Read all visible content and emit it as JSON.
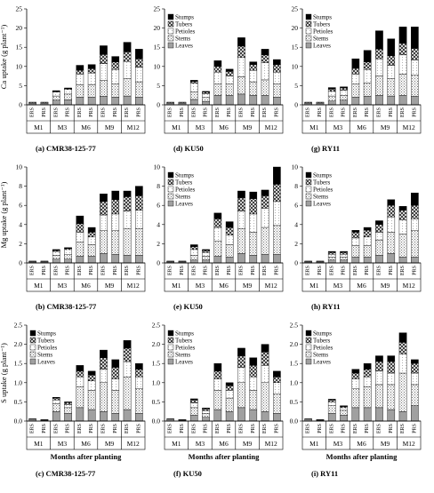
{
  "components": [
    "Leaves",
    "Stems",
    "Petioles",
    "Tubers",
    "Stumps"
  ],
  "legend_order": [
    "Stumps",
    "Tubers",
    "Petioles",
    "Stems",
    "Leaves"
  ],
  "x_title": "Months after planting",
  "chart_data": [
    {
      "type": "bar",
      "stacked": true,
      "panel": "a",
      "caption": "(a) CMR38-125-77",
      "ylabel": "Ca uptake (g plant⁻¹)",
      "ylim": [
        0,
        25
      ],
      "yticks": [
        0,
        5,
        10,
        15,
        20,
        25
      ],
      "months": [
        "M1",
        "M3",
        "M6",
        "M9",
        "M12"
      ],
      "bar_labels": [
        "ERS",
        "PRS",
        "ERS",
        "PRS",
        "ERS",
        "PRS",
        "ERS",
        "PRS",
        "ERS",
        "PRS"
      ],
      "legend": false,
      "series": [
        {
          "name": "Leaves",
          "values": [
            0.4,
            0.4,
            1.2,
            1.3,
            2.0,
            2.0,
            2.2,
            2.0,
            2.3,
            2.0
          ]
        },
        {
          "name": "Stems",
          "values": [
            0.2,
            0.2,
            1.1,
            1.5,
            3.2,
            3.3,
            4.2,
            3.5,
            4.5,
            4.0
          ]
        },
        {
          "name": "Petioles",
          "values": [
            0.1,
            0.1,
            1.0,
            1.2,
            2.8,
            3.0,
            4.3,
            3.7,
            4.5,
            3.8
          ]
        },
        {
          "name": "Tubers",
          "values": [
            0,
            0,
            0.2,
            0.2,
            1.0,
            1.1,
            2.4,
            2.0,
            2.5,
            2.2
          ]
        },
        {
          "name": "Stumps",
          "values": [
            0,
            0,
            0.2,
            0.2,
            1.3,
            1.1,
            2.3,
            1.4,
            2.5,
            2.5
          ]
        }
      ]
    },
    {
      "type": "bar",
      "stacked": true,
      "panel": "d",
      "caption": "(d) KU50",
      "ylabel": "",
      "ylim": [
        0,
        25
      ],
      "yticks": [
        0,
        5,
        10,
        15,
        20,
        25
      ],
      "months": [
        "M1",
        "M3",
        "M6",
        "M9",
        "M12"
      ],
      "bar_labels": [
        "ERS",
        "PRS",
        "ERS",
        "PRS",
        "ERS",
        "PRS",
        "ERS",
        "PRS",
        "ERS",
        "PRS"
      ],
      "legend": true,
      "series": [
        {
          "name": "Leaves",
          "values": [
            0.4,
            0.4,
            1.4,
            0.9,
            2.5,
            2.5,
            2.8,
            2.5,
            2.5,
            2.0
          ]
        },
        {
          "name": "Stems",
          "values": [
            0.2,
            0.2,
            2.0,
            1.0,
            3.0,
            3.0,
            4.5,
            3.5,
            4.0,
            3.5
          ]
        },
        {
          "name": "Petioles",
          "values": [
            0.1,
            0.1,
            2.2,
            1.0,
            3.0,
            2.0,
            5.0,
            3.0,
            4.5,
            3.0
          ]
        },
        {
          "name": "Tubers",
          "values": [
            0,
            0,
            0.5,
            0.4,
            1.5,
            1.2,
            3.0,
            1.5,
            2.0,
            2.0
          ]
        },
        {
          "name": "Stumps",
          "values": [
            0,
            0,
            0.3,
            0.2,
            1.5,
            0.6,
            2.2,
            0.7,
            1.5,
            1.3
          ]
        }
      ]
    },
    {
      "type": "bar",
      "stacked": true,
      "panel": "g",
      "caption": "(g) RY11",
      "ylabel": "",
      "ylim": [
        0,
        25
      ],
      "yticks": [
        0,
        5,
        10,
        15,
        20,
        25
      ],
      "months": [
        "M1",
        "M3",
        "M6",
        "M9",
        "M12"
      ],
      "bar_labels": [
        "ERS",
        "PRS",
        "ERS",
        "PRS",
        "ERS",
        "PRS",
        "ERS",
        "PRS",
        "ERS",
        "PRS"
      ],
      "legend": true,
      "series": [
        {
          "name": "Leaves",
          "values": [
            0.4,
            0.4,
            1.0,
            1.2,
            2.0,
            2.2,
            2.5,
            2.3,
            2.5,
            2.2
          ]
        },
        {
          "name": "Stems",
          "values": [
            0.2,
            0.2,
            1.3,
            1.3,
            3.5,
            3.5,
            5.0,
            4.5,
            5.5,
            5.5
          ]
        },
        {
          "name": "Petioles",
          "values": [
            0.1,
            0.1,
            1.2,
            1.3,
            2.5,
            3.5,
            4.5,
            3.5,
            5.0,
            4.0
          ]
        },
        {
          "name": "Tubers",
          "values": [
            0,
            0,
            0.6,
            0.6,
            1.5,
            2.0,
            2.5,
            2.5,
            3.0,
            3.0
          ]
        },
        {
          "name": "Stumps",
          "values": [
            0,
            0,
            0.4,
            0.3,
            2.5,
            3.0,
            4.8,
            4.4,
            4.3,
            5.6
          ]
        }
      ]
    },
    {
      "type": "bar",
      "stacked": true,
      "panel": "b",
      "caption": "(b) CMR38-125-77",
      "ylabel": "Mg uptake (g plant⁻¹)",
      "ylim": [
        0,
        10
      ],
      "yticks": [
        0,
        2,
        4,
        6,
        8,
        10
      ],
      "months": [
        "M1",
        "M3",
        "M6",
        "M9",
        "M12"
      ],
      "bar_labels": [
        "ERS",
        "PRS",
        "ERS",
        "PRS",
        "ERS",
        "PRS",
        "ERS",
        "PRS",
        "ERS",
        "PRS"
      ],
      "legend": false,
      "series": [
        {
          "name": "Leaves",
          "values": [
            0.1,
            0.1,
            0.4,
            0.4,
            0.7,
            0.7,
            1.0,
            0.9,
            0.8,
            0.8
          ]
        },
        {
          "name": "Stems",
          "values": [
            0.05,
            0.05,
            0.4,
            0.5,
            1.5,
            1.2,
            2.4,
            2.5,
            2.8,
            2.8
          ]
        },
        {
          "name": "Petioles",
          "values": [
            0.05,
            0.05,
            0.4,
            0.5,
            1.0,
            0.8,
            1.6,
            1.7,
            1.8,
            1.9
          ]
        },
        {
          "name": "Tubers",
          "values": [
            0,
            0,
            0.1,
            0.1,
            0.9,
            0.5,
            1.4,
            1.5,
            1.5,
            1.5
          ]
        },
        {
          "name": "Stumps",
          "values": [
            0,
            0,
            0.1,
            0.1,
            0.8,
            0.5,
            0.8,
            0.9,
            0.6,
            1.0
          ]
        }
      ]
    },
    {
      "type": "bar",
      "stacked": true,
      "panel": "e",
      "caption": "(e) KU50",
      "ylabel": "",
      "ylim": [
        0,
        10
      ],
      "yticks": [
        0,
        2,
        4,
        6,
        8,
        10
      ],
      "months": [
        "M1",
        "M3",
        "M6",
        "M9",
        "M12"
      ],
      "bar_labels": [
        "ERS",
        "PRS",
        "ERS",
        "PRS",
        "ERS",
        "PRS",
        "ERS",
        "PRS",
        "ERS",
        "PRS"
      ],
      "legend": true,
      "series": [
        {
          "name": "Leaves",
          "values": [
            0.1,
            0.1,
            0.3,
            0.3,
            0.7,
            0.6,
            1.0,
            0.8,
            0.9,
            0.9
          ]
        },
        {
          "name": "Stems",
          "values": [
            0.05,
            0.05,
            0.5,
            0.4,
            1.6,
            1.3,
            2.6,
            2.4,
            2.8,
            3.0
          ]
        },
        {
          "name": "Petioles",
          "values": [
            0.05,
            0.05,
            0.6,
            0.4,
            1.4,
            1.0,
            1.8,
            1.9,
            2.0,
            2.5
          ]
        },
        {
          "name": "Tubers",
          "values": [
            0,
            0,
            0.3,
            0.2,
            0.9,
            0.8,
            1.4,
            1.6,
            1.3,
            1.8
          ]
        },
        {
          "name": "Stumps",
          "values": [
            0,
            0,
            0.2,
            0.1,
            0.6,
            0.6,
            0.7,
            0.7,
            0.6,
            1.8
          ]
        }
      ]
    },
    {
      "type": "bar",
      "stacked": true,
      "panel": "h",
      "caption": "(h) RY11",
      "ylabel": "",
      "ylim": [
        0,
        10
      ],
      "yticks": [
        0,
        2,
        4,
        6,
        8,
        10
      ],
      "months": [
        "M1",
        "M3",
        "M6",
        "M9",
        "M12"
      ],
      "bar_labels": [
        "ERS",
        "PRS",
        "ERS",
        "PRS",
        "ERS",
        "PRS",
        "ERS",
        "PRS",
        "ERS",
        "PRS"
      ],
      "legend": true,
      "series": [
        {
          "name": "Leaves",
          "values": [
            0.1,
            0.1,
            0.3,
            0.3,
            0.6,
            0.6,
            0.8,
            1.0,
            0.6,
            0.6
          ]
        },
        {
          "name": "Stems",
          "values": [
            0.05,
            0.05,
            0.3,
            0.3,
            1.2,
            1.2,
            1.6,
            2.2,
            2.4,
            2.8
          ]
        },
        {
          "name": "Petioles",
          "values": [
            0.05,
            0.05,
            0.3,
            0.3,
            0.8,
            0.9,
            0.8,
            1.6,
            1.5,
            1.2
          ]
        },
        {
          "name": "Tubers",
          "values": [
            0,
            0,
            0.2,
            0.2,
            0.6,
            0.7,
            0.8,
            1.2,
            1.0,
            1.4
          ]
        },
        {
          "name": "Stumps",
          "values": [
            0,
            0,
            0.1,
            0.1,
            0.2,
            0.3,
            0.4,
            0.6,
            0.4,
            1.3
          ]
        }
      ]
    },
    {
      "type": "bar",
      "stacked": true,
      "panel": "c",
      "caption": "(c) CMR38-125-77",
      "ylabel": "S uptake (g plant⁻¹)",
      "ylim": [
        0,
        2.5
      ],
      "yticks": [
        0,
        0.5,
        1.0,
        1.5,
        2.0,
        2.5
      ],
      "months": [
        "M1",
        "M3",
        "M6",
        "M9",
        "M12"
      ],
      "bar_labels": [
        "ERS",
        "PRS",
        "ERS",
        "PRS",
        "ERS",
        "PRS",
        "ERS",
        "PRS",
        "ERS",
        "PRS"
      ],
      "legend": true,
      "series": [
        {
          "name": "Leaves",
          "values": [
            0.03,
            0.02,
            0.25,
            0.2,
            0.35,
            0.3,
            0.25,
            0.2,
            0.3,
            0.2
          ]
        },
        {
          "name": "Stems",
          "values": [
            0.02,
            0.01,
            0.2,
            0.15,
            0.55,
            0.5,
            0.75,
            0.6,
            0.85,
            0.65
          ]
        },
        {
          "name": "Petioles",
          "values": [
            0.01,
            0.01,
            0.1,
            0.08,
            0.25,
            0.25,
            0.35,
            0.3,
            0.4,
            0.3
          ]
        },
        {
          "name": "Tubers",
          "values": [
            0,
            0,
            0.05,
            0.05,
            0.15,
            0.15,
            0.3,
            0.3,
            0.35,
            0.2
          ]
        },
        {
          "name": "Stumps",
          "values": [
            0,
            0,
            0.02,
            0.02,
            0.15,
            0.1,
            0.2,
            0.2,
            0.2,
            0.15
          ]
        }
      ]
    },
    {
      "type": "bar",
      "stacked": true,
      "panel": "f",
      "caption": "(f) KU50",
      "ylabel": "",
      "ylim": [
        0,
        2.5
      ],
      "yticks": [
        0,
        0.5,
        1.0,
        1.5,
        2.0,
        2.5
      ],
      "months": [
        "M1",
        "M3",
        "M6",
        "M9",
        "M12"
      ],
      "bar_labels": [
        "ERS",
        "PRS",
        "ERS",
        "PRS",
        "ERS",
        "PRS",
        "ERS",
        "PRS",
        "ERS",
        "PRS"
      ],
      "legend": true,
      "series": [
        {
          "name": "Leaves",
          "values": [
            0.03,
            0.02,
            0.15,
            0.1,
            0.3,
            0.25,
            0.35,
            0.3,
            0.25,
            0.2
          ]
        },
        {
          "name": "Stems",
          "values": [
            0.02,
            0.01,
            0.2,
            0.1,
            0.5,
            0.35,
            0.65,
            0.5,
            0.75,
            0.5
          ]
        },
        {
          "name": "Petioles",
          "values": [
            0.01,
            0.01,
            0.12,
            0.07,
            0.3,
            0.2,
            0.4,
            0.35,
            0.45,
            0.3
          ]
        },
        {
          "name": "Tubers",
          "values": [
            0,
            0,
            0.08,
            0.05,
            0.2,
            0.12,
            0.3,
            0.3,
            0.35,
            0.15
          ]
        },
        {
          "name": "Stumps",
          "values": [
            0,
            0,
            0.03,
            0.02,
            0.2,
            0.08,
            0.2,
            0.2,
            0.2,
            0.15
          ]
        }
      ]
    },
    {
      "type": "bar",
      "stacked": true,
      "panel": "i",
      "caption": "(i) RY11",
      "ylabel": "",
      "ylim": [
        0,
        2.5
      ],
      "yticks": [
        0,
        0.5,
        1.0,
        1.5,
        2.0,
        2.5
      ],
      "months": [
        "M1",
        "M3",
        "M6",
        "M9",
        "M12"
      ],
      "bar_labels": [
        "ERS",
        "PRS",
        "ERS",
        "PRS",
        "ERS",
        "PRS",
        "ERS",
        "PRS",
        "ERS",
        "PRS"
      ],
      "legend": true,
      "series": [
        {
          "name": "Leaves",
          "values": [
            0.03,
            0.02,
            0.2,
            0.15,
            0.35,
            0.35,
            0.35,
            0.3,
            0.25,
            0.4
          ]
        },
        {
          "name": "Stems",
          "values": [
            0.02,
            0.01,
            0.2,
            0.13,
            0.5,
            0.55,
            0.6,
            0.65,
            1.0,
            0.55
          ]
        },
        {
          "name": "Petioles",
          "values": [
            0.01,
            0.01,
            0.1,
            0.07,
            0.25,
            0.25,
            0.35,
            0.3,
            0.5,
            0.3
          ]
        },
        {
          "name": "Tubers",
          "values": [
            0,
            0,
            0.05,
            0.03,
            0.15,
            0.2,
            0.25,
            0.3,
            0.3,
            0.25
          ]
        },
        {
          "name": "Stumps",
          "values": [
            0,
            0,
            0.02,
            0.02,
            0.1,
            0.15,
            0.15,
            0.15,
            0.25,
            0.1
          ]
        }
      ]
    }
  ]
}
